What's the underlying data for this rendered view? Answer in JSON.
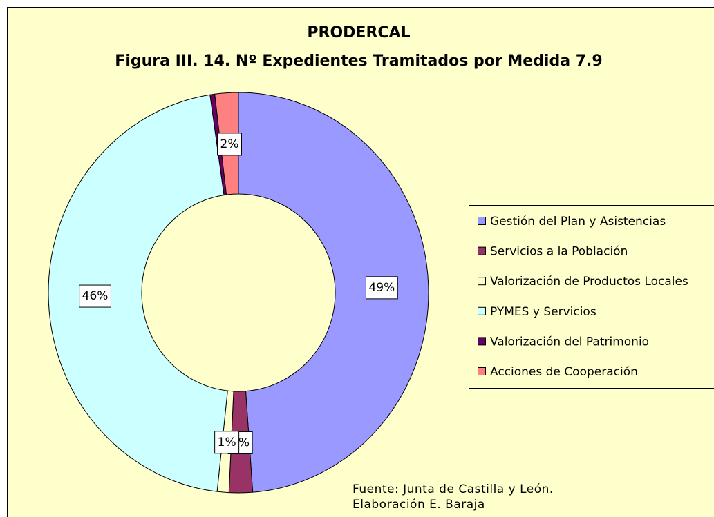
{
  "chart_data": {
    "type": "donut",
    "title": "PRODERCAL",
    "subtitle": "Figura III. 14. Nº Expedientes Tramitados por Medida 7.9",
    "categories": [
      "Gestión del Plan y Asistencias",
      "Servicios a la Población",
      "Valorización de Productos Locales",
      "PYMES y Servicios",
      "Valorización del Patrimonio",
      "Acciones de Cooperación"
    ],
    "values": [
      49,
      2,
      1,
      46,
      0.4,
      2
    ],
    "value_labels": [
      "49%",
      "2%",
      "1%",
      "46%",
      null,
      "2%"
    ],
    "colors": [
      "#9999ff",
      "#993366",
      "#ffffcc",
      "#ccffff",
      "#660066",
      "#ff8080"
    ],
    "legend": "right",
    "source": "Fuente: Junta de Castilla y León. Elaboración E. Baraja"
  }
}
